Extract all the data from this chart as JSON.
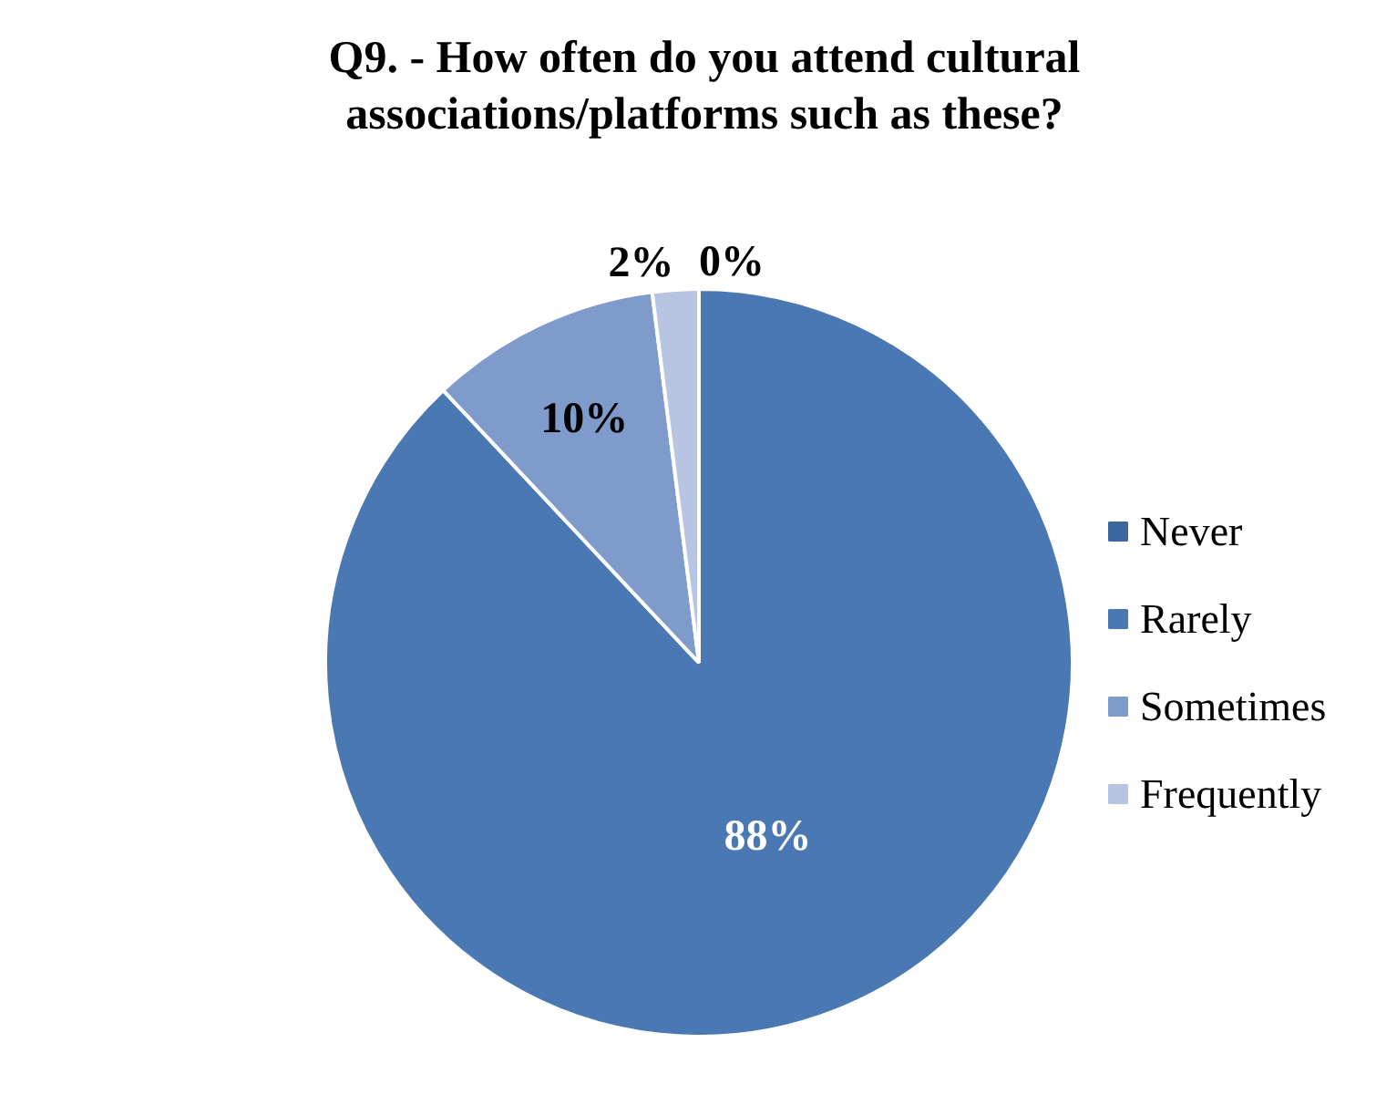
{
  "chart_data": {
    "type": "pie",
    "title": "Q9. - How often do you attend cultural associations/platforms such as these?",
    "categories": [
      "Never",
      "Rarely",
      "Sometimes",
      "Frequently"
    ],
    "values": [
      0,
      88,
      10,
      2
    ],
    "colors": [
      "#3d679f",
      "#4a78b2",
      "#7e9bcb",
      "#b7c5e2"
    ],
    "value_labels": [
      "0%",
      "88%",
      "10%",
      "2%"
    ],
    "legend": "right"
  }
}
